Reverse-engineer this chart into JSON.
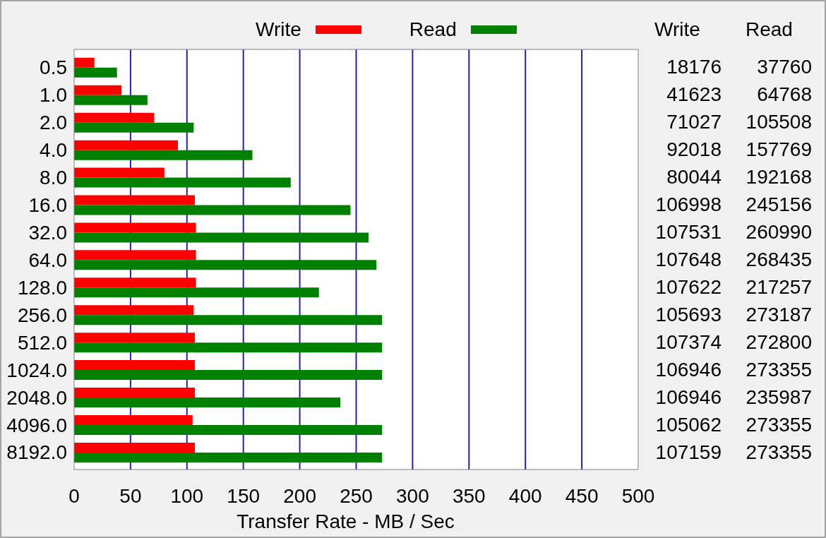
{
  "chart_data": {
    "type": "bar",
    "orientation": "horizontal",
    "categories": [
      "0.5",
      "1.0",
      "2.0",
      "4.0",
      "8.0",
      "16.0",
      "32.0",
      "64.0",
      "128.0",
      "256.0",
      "512.0",
      "1024.0",
      "2048.0",
      "4096.0",
      "8192.0"
    ],
    "series": [
      {
        "name": "Write",
        "color": "#ff0000",
        "values": [
          18,
          42,
          71,
          92,
          80,
          107,
          108,
          108,
          108,
          106,
          107,
          107,
          107,
          105,
          107
        ]
      },
      {
        "name": "Read",
        "color": "#008000",
        "values": [
          38,
          65,
          106,
          158,
          192,
          245,
          261,
          268,
          217,
          273,
          273,
          273,
          236,
          273,
          273
        ]
      }
    ],
    "xlabel": "Transfer Rate - MB / Sec",
    "xlim": [
      0,
      500
    ],
    "xticks": [
      0,
      50,
      100,
      150,
      200,
      250,
      300,
      350,
      400,
      450,
      500
    ],
    "grid": "x",
    "legend": "top",
    "annotations": [
      "18176",
      "37760",
      "41623",
      "64768",
      "71027",
      "105508",
      "92018",
      "157769",
      "80044",
      "192168",
      "106998",
      "245156",
      "107531",
      "260990",
      "107648",
      "268435",
      "107622",
      "217257",
      "105693",
      "273187",
      "107374",
      "272800",
      "106946",
      "273355",
      "106946",
      "235987",
      "105062",
      "273355",
      "107159",
      "273355"
    ]
  }
}
